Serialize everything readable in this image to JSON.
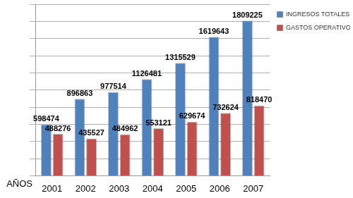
{
  "chart_data": {
    "type": "bar",
    "x_label": "AÑOS",
    "categories": [
      "2001",
      "2002",
      "2003",
      "2004",
      "2005",
      "2006",
      "2007"
    ],
    "series": [
      {
        "name": "INGRESOS TOTALES",
        "color": "#4F81BD",
        "values": [
          598474,
          896863,
          977514,
          1126481,
          1315529,
          1619643,
          1809225
        ]
      },
      {
        "name": "GASTOS OPERATIVOS",
        "color": "#C0504D",
        "values": [
          488276,
          435527,
          484962,
          553121,
          629674,
          732624,
          818470
        ]
      }
    ],
    "ylim": [
      0,
      2000000
    ],
    "yticks": [
      0,
      200000,
      400000,
      600000,
      800000,
      1000000,
      1200000,
      1400000,
      1600000,
      1800000,
      2000000
    ],
    "grid": true,
    "legend": "right",
    "data_labels": true,
    "tick_labels": "x"
  }
}
